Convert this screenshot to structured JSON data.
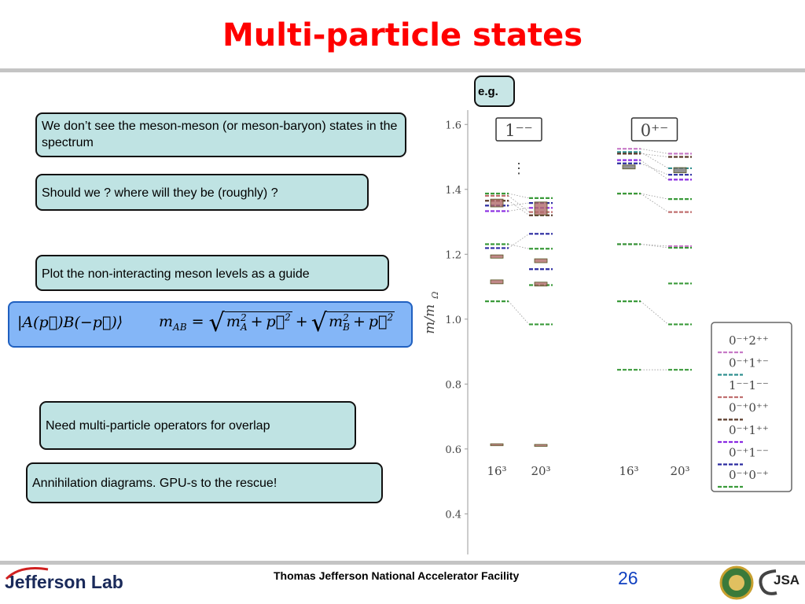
{
  "header": {
    "title": "Multi-particle states"
  },
  "eg": "e.g.",
  "notes": [
    "We don’t see the meson-meson (or meson-baryon) states in the spectrum",
    "Should we ? where will they be (roughly) ?",
    "Plot the non-interacting meson levels as a guide",
    "Need multi-particle operators for overlap",
    "Annihilation diagrams. GPU-s to the rescue!"
  ],
  "formula": {
    "state": "|A(p⃗)B(−p⃗)⟩",
    "lhs": "m",
    "lhs_sub": "AB",
    "eq": "=",
    "radical": "√",
    "join": "+",
    "roots": [
      [
        {
          "t": "m",
          "sub": "A",
          "sup": "2"
        },
        {
          "t": "+"
        },
        {
          "t": "p⃗",
          "sup": "2"
        }
      ],
      [
        {
          "t": "m",
          "sub": "B",
          "sup": "2"
        },
        {
          "t": "+"
        },
        {
          "t": "p⃗",
          "sup": "2"
        }
      ]
    ]
  },
  "chart_data": {
    "type": "energy-levels",
    "y_label": "m/m",
    "y_label_sub": "Ω",
    "ylim": [
      0.35,
      1.62
    ],
    "yticks": [
      0.4,
      0.6,
      0.8,
      {
        "value": 1,
        "label": "1.0"
      },
      1.2,
      1.4,
      1.6
    ],
    "x_labels": [
      "16³",
      "20³"
    ],
    "state_color": "#b06a6a",
    "panels": [
      {
        "label": "1⁻⁻",
        "dots": "⋮",
        "state_color": "#b06a6a",
        "states": [
          [
            [
              1.358,
              0.012
            ],
            [
              1.193,
              0.005
            ],
            [
              1.115,
              0.006
            ],
            [
              0.613,
              0.003
            ]
          ],
          [
            [
              1.341,
              0.02
            ],
            [
              1.18,
              0.006
            ],
            [
              1.108,
              0.006
            ],
            [
              0.611,
              0.003
            ]
          ]
        ]
      },
      {
        "label": "0⁺⁻",
        "state_color": "#777777",
        "states": [
          [
            [
              1.469,
              0.006
            ]
          ],
          [
            [
              1.459,
              0.008
            ]
          ]
        ]
      }
    ],
    "series": [
      {
        "name": "0⁻⁺2⁺⁺",
        "color": "#c77ac7",
        "panels": [
          [],
          [
            [
              1.525,
              1.51
            ],
            [
              1.231,
              1.225
            ]
          ]
        ]
      },
      {
        "name": "0⁻⁺1⁺⁻",
        "color": "#2f8f8f",
        "panels": [
          [],
          [
            [
              1.515,
              1.465
            ]
          ]
        ]
      },
      {
        "name": "1⁻⁻1⁻⁻",
        "color": "#c07070",
        "panels": [
          [
            [
              1.38,
              1.33
            ]
          ],
          [
            [
              1.387,
              1.33
            ]
          ]
        ]
      },
      {
        "name": "0⁻⁺0⁺⁺",
        "color": "#5a3a2a",
        "panels": [
          [
            [
              1.365,
              1.32
            ]
          ],
          [
            [
              1.51,
              1.5
            ]
          ]
        ]
      },
      {
        "name": "0⁻⁺1⁺⁺",
        "color": "#8a2be2",
        "panels": [
          [
            [
              1.333,
              1.343
            ]
          ],
          [
            [
              1.49,
              1.43
            ]
          ]
        ]
      },
      {
        "name": "0⁻⁺1⁻⁻",
        "color": "#2a2aa0",
        "panels": [
          [
            [
              1.219,
              1.263
            ],
            [
              1.35,
              1.358
            ],
            [
              null,
              1.154
            ]
          ],
          [
            [
              1.48,
              1.445
            ]
          ]
        ]
      },
      {
        "name": "0⁻⁺0⁻⁺",
        "color": "#3a9a3a",
        "panels": [
          [
            [
              1.387,
              1.373
            ],
            [
              1.231,
              1.217
            ],
            [
              1.055,
              0.984
            ],
            [
              null,
              1.105
            ]
          ],
          [
            [
              1.387,
              1.37
            ],
            [
              1.231,
              1.22
            ],
            [
              1.055,
              0.984
            ],
            [
              null,
              1.11
            ],
            [
              0.844,
              0.844
            ]
          ]
        ]
      }
    ]
  },
  "footer": {
    "lab": "Jefferson Lab",
    "facility": "Thomas Jefferson National Accelerator Facility",
    "page": "26",
    "jsa": "JSA"
  }
}
